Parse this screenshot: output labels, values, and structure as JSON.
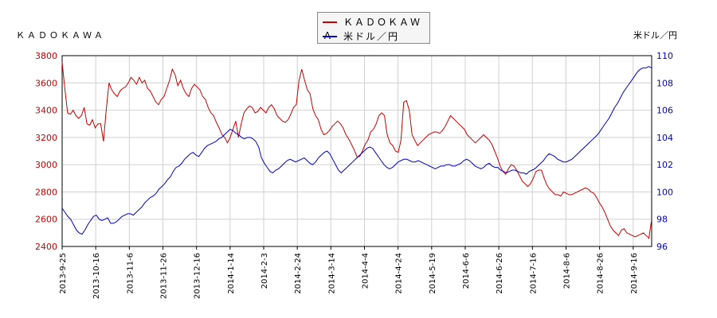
{
  "chart_data": {
    "type": "line",
    "left_axis_label": "ＫＡＤＯＫＡＷＡ",
    "right_axis_label": "米ドル／円",
    "x_tick_labels": [
      "2013-9-25",
      "2013-10-16",
      "2013-11-6",
      "2013-11-26",
      "2013-12-16",
      "2014-1-14",
      "2014-2-3",
      "2014-2-24",
      "2014-3-14",
      "2014-4-4",
      "2014-4-24",
      "2014-5-19",
      "2014-6-6",
      "2014-6-26",
      "2014-7-16",
      "2014-8-6",
      "2014-8-26",
      "2014-9-16"
    ],
    "y_left": {
      "ticks": [
        2400,
        2600,
        2800,
        3000,
        3200,
        3400,
        3600,
        3800
      ],
      "range": [
        2400,
        3800
      ]
    },
    "y_right": {
      "ticks": [
        96,
        98,
        100,
        102,
        104,
        106,
        108,
        110
      ],
      "range": [
        96,
        110
      ]
    },
    "grid": true,
    "legend_position": "top-center",
    "series": [
      {
        "name": "ＫＡＤＯＫＡＷＡ",
        "axis": "left",
        "color": "#cc0000",
        "values": [
          3750,
          3550,
          3380,
          3370,
          3400,
          3360,
          3340,
          3360,
          3420,
          3300,
          3290,
          3330,
          3270,
          3300,
          3300,
          3170,
          3400,
          3600,
          3550,
          3520,
          3500,
          3540,
          3560,
          3570,
          3600,
          3640,
          3620,
          3590,
          3640,
          3600,
          3620,
          3560,
          3540,
          3500,
          3460,
          3440,
          3480,
          3500,
          3560,
          3620,
          3700,
          3660,
          3580,
          3620,
          3560,
          3520,
          3500,
          3560,
          3590,
          3570,
          3550,
          3500,
          3480,
          3420,
          3380,
          3360,
          3310,
          3270,
          3220,
          3200,
          3160,
          3200,
          3260,
          3320,
          3200,
          3300,
          3380,
          3410,
          3430,
          3420,
          3380,
          3390,
          3420,
          3400,
          3380,
          3420,
          3440,
          3410,
          3360,
          3340,
          3320,
          3310,
          3330,
          3370,
          3420,
          3440,
          3620,
          3700,
          3620,
          3550,
          3520,
          3410,
          3360,
          3330,
          3260,
          3220,
          3230,
          3250,
          3280,
          3300,
          3320,
          3300,
          3270,
          3220,
          3190,
          3150,
          3110,
          3060,
          3060,
          3100,
          3150,
          3180,
          3240,
          3260,
          3300,
          3360,
          3380,
          3360,
          3220,
          3160,
          3140,
          3100,
          3090,
          3180,
          3460,
          3470,
          3400,
          3220,
          3180,
          3140,
          3160,
          3180,
          3200,
          3220,
          3230,
          3240,
          3240,
          3230,
          3250,
          3280,
          3320,
          3360,
          3340,
          3320,
          3300,
          3280,
          3260,
          3220,
          3200,
          3180,
          3160,
          3180,
          3200,
          3220,
          3200,
          3180,
          3150,
          3100,
          3050,
          2990,
          2950,
          2930,
          2970,
          3000,
          2990,
          2960,
          2920,
          2880,
          2860,
          2840,
          2860,
          2900,
          2950,
          2960,
          2960,
          2900,
          2850,
          2820,
          2800,
          2780,
          2780,
          2770,
          2800,
          2790,
          2780,
          2780,
          2790,
          2800,
          2810,
          2820,
          2830,
          2820,
          2800,
          2790,
          2760,
          2720,
          2690,
          2650,
          2600,
          2550,
          2520,
          2500,
          2480,
          2520,
          2530,
          2500,
          2490,
          2480,
          2470,
          2480,
          2490,
          2500,
          2480,
          2460,
          2600
        ]
      },
      {
        "name": "米ドル／円",
        "axis": "right",
        "color": "#0000cc",
        "values": [
          98.8,
          98.5,
          98.2,
          98.0,
          97.6,
          97.2,
          97.0,
          96.9,
          97.2,
          97.6,
          97.9,
          98.2,
          98.3,
          98.0,
          97.9,
          98.0,
          98.1,
          97.7,
          97.7,
          97.8,
          98.0,
          98.2,
          98.3,
          98.4,
          98.4,
          98.3,
          98.5,
          98.7,
          98.9,
          99.2,
          99.4,
          99.6,
          99.7,
          99.9,
          100.2,
          100.4,
          100.6,
          100.9,
          101.1,
          101.5,
          101.8,
          101.9,
          102.1,
          102.4,
          102.6,
          102.8,
          102.9,
          102.7,
          102.6,
          102.9,
          103.2,
          103.4,
          103.5,
          103.6,
          103.7,
          103.9,
          104.0,
          104.2,
          104.4,
          104.6,
          104.5,
          104.3,
          104.2,
          104.0,
          103.9,
          104.0,
          104.0,
          103.9,
          103.7,
          103.3,
          102.5,
          102.1,
          101.8,
          101.5,
          101.4,
          101.6,
          101.7,
          101.9,
          102.1,
          102.3,
          102.4,
          102.3,
          102.2,
          102.3,
          102.4,
          102.5,
          102.3,
          102.1,
          102.0,
          102.2,
          102.5,
          102.7,
          102.9,
          103.0,
          102.8,
          102.4,
          102.0,
          101.6,
          101.4,
          101.6,
          101.8,
          102.0,
          102.2,
          102.4,
          102.6,
          102.8,
          103.0,
          103.2,
          103.3,
          103.2,
          102.9,
          102.6,
          102.3,
          102.0,
          101.8,
          101.7,
          101.8,
          102.0,
          102.2,
          102.3,
          102.4,
          102.4,
          102.3,
          102.2,
          102.2,
          102.3,
          102.2,
          102.1,
          102.0,
          101.9,
          101.8,
          101.7,
          101.8,
          101.9,
          101.9,
          102.0,
          102.0,
          101.9,
          101.9,
          102.0,
          102.1,
          102.3,
          102.4,
          102.3,
          102.1,
          101.9,
          101.8,
          101.7,
          101.8,
          102.0,
          102.1,
          101.9,
          101.8,
          101.8,
          101.6,
          101.5,
          101.4,
          101.5,
          101.6,
          101.6,
          101.5,
          101.4,
          101.4,
          101.3,
          101.5,
          101.6,
          101.7,
          101.9,
          102.1,
          102.3,
          102.6,
          102.8,
          102.7,
          102.6,
          102.4,
          102.3,
          102.2,
          102.2,
          102.3,
          102.4,
          102.6,
          102.8,
          103.0,
          103.2,
          103.4,
          103.6,
          103.8,
          104.0,
          104.2,
          104.5,
          104.8,
          105.1,
          105.4,
          105.8,
          106.2,
          106.5,
          106.9,
          107.3,
          107.6,
          107.9,
          108.2,
          108.5,
          108.8,
          109.0,
          109.1,
          109.1,
          109.2,
          109.1
        ]
      }
    ]
  }
}
